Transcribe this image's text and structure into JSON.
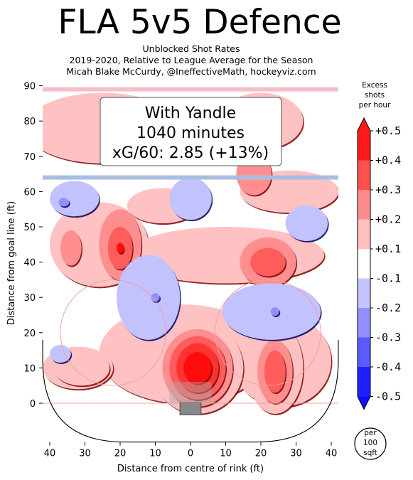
{
  "header": {
    "title": "FLA 5v5 Defence",
    "subtitle_1": "Unblocked Shot Rates",
    "subtitle_2": "2019-2020, Relative to League Average for the Season",
    "subtitle_3": "Micah Blake McCurdy, @IneffectiveMath, hockeyviz.com"
  },
  "infobox": {
    "line1": "With Yandle",
    "line2": "1040 minutes",
    "line3": "xG/60: 2.85 (+13%)"
  },
  "colorbar": {
    "title_lines": [
      "Excess",
      "shots",
      "per hour"
    ],
    "labels": [
      "+0.5",
      "+0.4",
      "+0.3",
      "+0.2",
      "+0.1",
      "-0.1",
      "-0.2",
      "-0.3",
      "-0.4",
      "-0.5"
    ],
    "colors": [
      "#ff1a1a",
      "#ff5050",
      "#ff8c8c",
      "#ffbfbf",
      "#ffffff",
      "#c4c4ff",
      "#9090ff",
      "#5a5aff",
      "#2020ff"
    ]
  },
  "unit_badge": [
    "per",
    "100",
    "sqft"
  ],
  "chart_data": {
    "type": "heatmap",
    "xlabel": "Distance from centre of rink (ft)",
    "ylabel": "Distance from goal line (ft)",
    "xlim": [
      -42,
      42
    ],
    "ylim": [
      -11,
      90
    ],
    "xtick_labels": [
      "40",
      "30",
      "20",
      "10",
      "0",
      "10",
      "20",
      "30",
      "40"
    ],
    "xtick_values": [
      -40,
      -30,
      -20,
      -10,
      0,
      10,
      20,
      30,
      40
    ],
    "ytick_values": [
      0,
      10,
      20,
      30,
      40,
      50,
      60,
      70,
      80,
      90
    ],
    "blue_line_y": 64,
    "top_line_y": 89,
    "regions": [
      {
        "cx": 2,
        "cy": 10,
        "rx": 13,
        "ry": 13,
        "level": 0.1
      },
      {
        "cx": 2,
        "cy": 10,
        "rx": 10,
        "ry": 11,
        "level": 0.2
      },
      {
        "cx": 2,
        "cy": 10,
        "rx": 8,
        "ry": 9,
        "level": 0.3
      },
      {
        "cx": 2,
        "cy": 10,
        "rx": 6,
        "ry": 7,
        "level": 0.4
      },
      {
        "cx": 2,
        "cy": 10,
        "rx": 4,
        "ry": 4.5,
        "level": 0.5
      },
      {
        "cx": 24,
        "cy": 10,
        "rx": 8,
        "ry": 13,
        "level": 0.1
      },
      {
        "cx": 24,
        "cy": 9,
        "rx": 5,
        "ry": 9,
        "level": 0.2
      },
      {
        "cx": 24,
        "cy": 9,
        "rx": 3,
        "ry": 6,
        "level": 0.3
      },
      {
        "cx": -20,
        "cy": 45,
        "rx": 6,
        "ry": 10,
        "level": 0.2
      },
      {
        "cx": -20,
        "cy": 44,
        "rx": 3.5,
        "ry": 6,
        "level": 0.3
      },
      {
        "cx": -20,
        "cy": 44,
        "rx": 1,
        "ry": 1.5,
        "level": 0.5
      },
      {
        "cx": 22,
        "cy": 40,
        "rx": 8,
        "ry": 7,
        "level": 0.2
      },
      {
        "cx": 22,
        "cy": 40,
        "rx": 5,
        "ry": 4,
        "level": 0.3
      },
      {
        "cx": -34,
        "cy": 44,
        "rx": 3,
        "ry": 5,
        "level": 0.2
      },
      {
        "cx": -31,
        "cy": 10,
        "rx": 8,
        "ry": 5,
        "level": 0.1
      },
      {
        "cx": 18,
        "cy": 65,
        "rx": 5,
        "ry": 6,
        "level": 0.2
      },
      {
        "cx": -33,
        "cy": 58,
        "rx": 7,
        "ry": 5,
        "level": -0.1
      },
      {
        "cx": -36,
        "cy": 57,
        "rx": 1.5,
        "ry": 1.2,
        "level": -0.2
      },
      {
        "cx": 0,
        "cy": 58,
        "rx": 6,
        "ry": 6,
        "level": -0.1
      },
      {
        "cx": 33,
        "cy": 51,
        "rx": 6,
        "ry": 5,
        "level": -0.1
      },
      {
        "cx": -12,
        "cy": 30,
        "rx": 9,
        "ry": 12,
        "level": -0.1
      },
      {
        "cx": 23,
        "cy": 26,
        "rx": 14,
        "ry": 8,
        "level": -0.1
      },
      {
        "cx": 24,
        "cy": 26,
        "rx": 1.2,
        "ry": 1.2,
        "level": -0.2
      },
      {
        "cx": -37,
        "cy": 14,
        "rx": 3,
        "ry": 2.5,
        "level": -0.1
      },
      {
        "cx": -10,
        "cy": 30,
        "rx": 1.2,
        "ry": 1.2,
        "level": -0.2
      }
    ]
  }
}
